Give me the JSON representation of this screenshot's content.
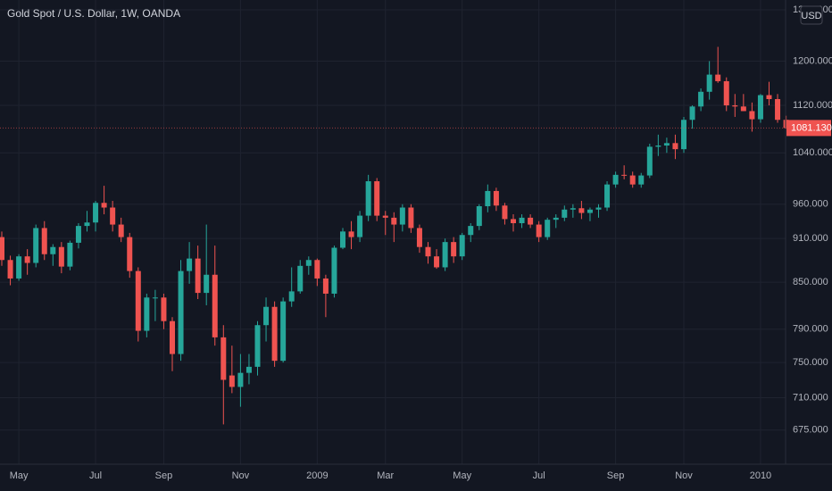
{
  "chart_data": {
    "type": "candlestick",
    "title": "Gold Spot / U.S. Dollar, 1W, OANDA",
    "currency": "USD",
    "categories": [
      null,
      null,
      "May",
      null,
      null,
      null,
      null,
      null,
      null,
      null,
      null,
      "Jul",
      null,
      null,
      null,
      null,
      null,
      null,
      null,
      "Sep",
      null,
      null,
      null,
      null,
      null,
      null,
      null,
      null,
      "Nov",
      null,
      null,
      null,
      null,
      null,
      null,
      null,
      null,
      "2009",
      null,
      null,
      null,
      null,
      null,
      null,
      null,
      "Mar",
      null,
      null,
      null,
      null,
      null,
      null,
      null,
      null,
      "May",
      null,
      null,
      null,
      null,
      null,
      null,
      null,
      null,
      "Jul",
      null,
      null,
      null,
      null,
      null,
      null,
      null,
      null,
      "Sep",
      null,
      null,
      null,
      null,
      null,
      null,
      null,
      "Nov",
      null,
      null,
      null,
      null,
      null,
      null,
      null,
      null,
      "2010",
      null,
      null,
      null
    ],
    "open": [
      912,
      880,
      855,
      885,
      876,
      925,
      888,
      898,
      871,
      904,
      928,
      933,
      962,
      955,
      930,
      912,
      865,
      788,
      830,
      830,
      800,
      760,
      865,
      882,
      836,
      860,
      780,
      735,
      722,
      738,
      745,
      795,
      818,
      752,
      825,
      838,
      872,
      880,
      855,
      835,
      897,
      920,
      912,
      943,
      995,
      943,
      940,
      930,
      955,
      925,
      898,
      885,
      870,
      905,
      885,
      915,
      928,
      957,
      980,
      958,
      938,
      932,
      940,
      930,
      912,
      937,
      940,
      952,
      954,
      947,
      952,
      955,
      990,
      1005,
      1004,
      990,
      1004,
      1050,
      1052,
      1056,
      1046,
      1095,
      1118,
      1144,
      1175,
      1163,
      1120,
      1118,
      1110,
      1096,
      1138,
      1131,
      1095
    ],
    "high": [
      920,
      886,
      888,
      895,
      930,
      935,
      902,
      905,
      907,
      932,
      950,
      965,
      988,
      965,
      940,
      918,
      870,
      835,
      840,
      835,
      805,
      880,
      905,
      900,
      930,
      900,
      795,
      770,
      760,
      760,
      800,
      830,
      825,
      830,
      870,
      880,
      885,
      882,
      860,
      900,
      925,
      935,
      950,
      1005,
      1000,
      950,
      948,
      960,
      960,
      930,
      905,
      895,
      910,
      912,
      918,
      932,
      960,
      990,
      985,
      962,
      945,
      945,
      945,
      935,
      940,
      945,
      958,
      960,
      965,
      955,
      960,
      995,
      1010,
      1020,
      1010,
      1008,
      1055,
      1070,
      1065,
      1070,
      1100,
      1120,
      1150,
      1200,
      1227,
      1170,
      1140,
      1140,
      1125,
      1140,
      1162,
      1140,
      1102
    ],
    "low": [
      872,
      846,
      852,
      860,
      870,
      880,
      872,
      862,
      866,
      896,
      920,
      920,
      945,
      920,
      905,
      856,
      775,
      780,
      800,
      790,
      740,
      752,
      848,
      828,
      820,
      770,
      681,
      715,
      700,
      725,
      735,
      775,
      745,
      750,
      818,
      835,
      860,
      845,
      805,
      830,
      895,
      895,
      905,
      935,
      935,
      915,
      905,
      920,
      918,
      890,
      875,
      868,
      865,
      876,
      880,
      905,
      922,
      948,
      950,
      930,
      920,
      925,
      925,
      905,
      908,
      925,
      935,
      940,
      938,
      935,
      940,
      950,
      985,
      998,
      985,
      985,
      1000,
      1035,
      1040,
      1030,
      1040,
      1080,
      1110,
      1130,
      1160,
      1110,
      1100,
      1110,
      1075,
      1090,
      1120,
      1090,
      1080
    ],
    "close": [
      880,
      855,
      885,
      876,
      925,
      888,
      898,
      871,
      904,
      928,
      933,
      962,
      955,
      930,
      912,
      865,
      788,
      830,
      830,
      800,
      760,
      865,
      882,
      836,
      860,
      780,
      730,
      722,
      738,
      745,
      795,
      818,
      752,
      825,
      838,
      872,
      880,
      855,
      835,
      897,
      920,
      912,
      943,
      995,
      943,
      940,
      930,
      955,
      925,
      898,
      885,
      870,
      905,
      885,
      915,
      928,
      957,
      980,
      958,
      938,
      932,
      940,
      930,
      912,
      937,
      940,
      952,
      954,
      947,
      952,
      955,
      990,
      1005,
      1004,
      990,
      1004,
      1050,
      1052,
      1056,
      1046,
      1095,
      1118,
      1144,
      1175,
      1163,
      1120,
      1118,
      1110,
      1096,
      1138,
      1131,
      1095,
      1081.13
    ],
    "up_color": "#26a69a",
    "down_color": "#ef5350",
    "log_scale": true,
    "grid": true,
    "ylim": [
      640,
      1320
    ],
    "yticks": [
      {
        "value": 675,
        "label": "675.000"
      },
      {
        "value": 710,
        "label": "710.000"
      },
      {
        "value": 750,
        "label": "750.000"
      },
      {
        "value": 790,
        "label": "790.000"
      },
      {
        "value": 850,
        "label": "850.000"
      },
      {
        "value": 910,
        "label": "910.000"
      },
      {
        "value": 960,
        "label": "960.000"
      },
      {
        "value": 1040,
        "label": "1040.000"
      },
      {
        "value": 1120,
        "label": "1120.000"
      },
      {
        "value": 1200,
        "label": "1200.000"
      },
      {
        "value": 1300,
        "label": "1300.000"
      }
    ],
    "last_price": {
      "value": 1081.13,
      "label": "1081.130"
    }
  }
}
